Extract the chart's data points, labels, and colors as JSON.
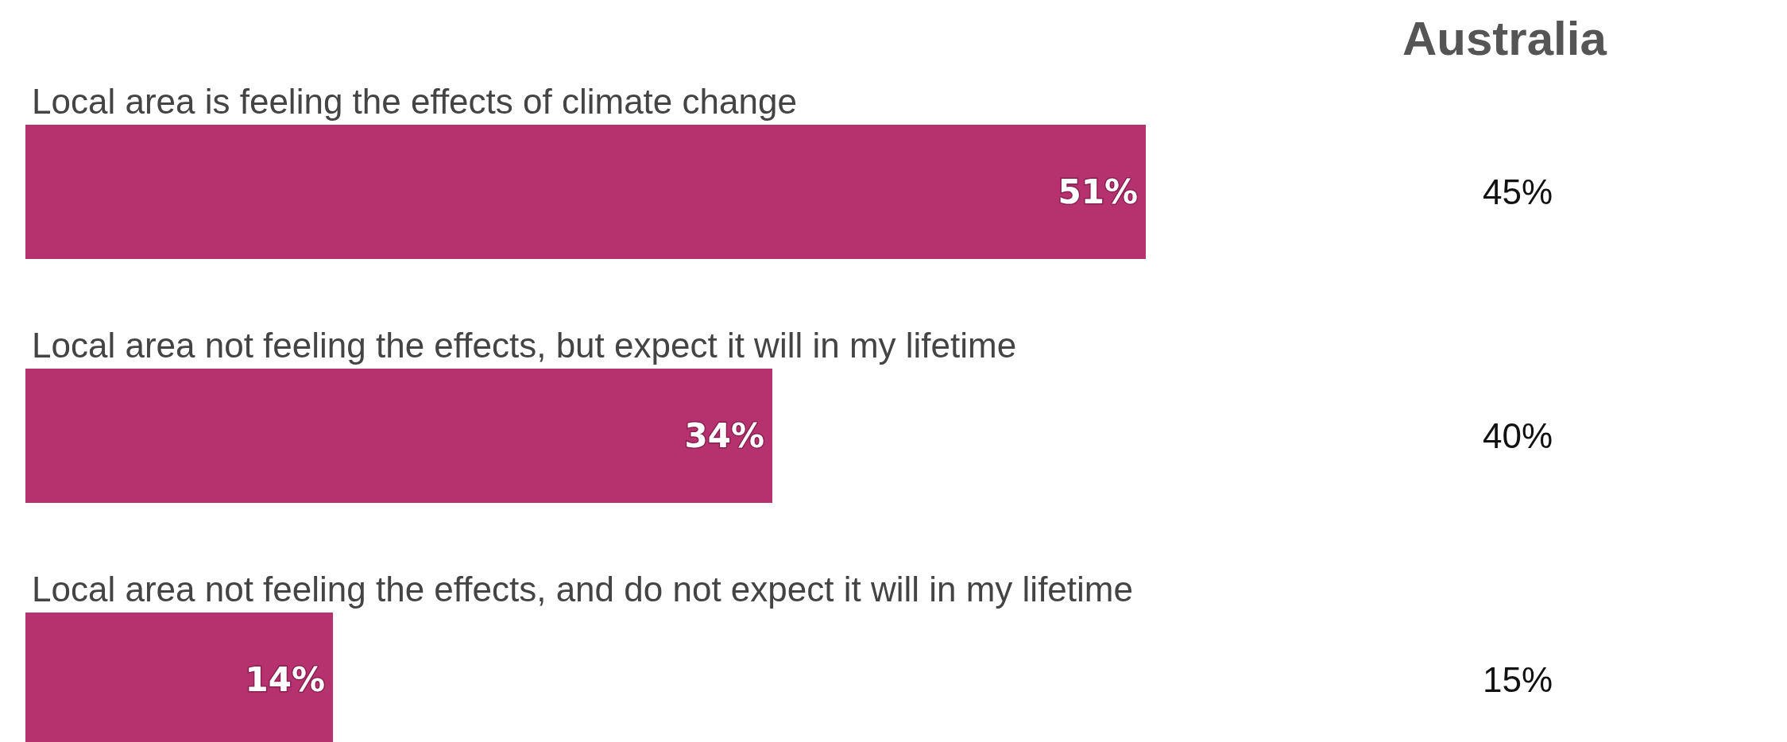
{
  "chart_data": {
    "type": "bar",
    "orientation": "horizontal",
    "categories": [
      "Local area is feeling the effects of climate change",
      "Local area not feeling the effects, but expect it will in my lifetime",
      "Local area not feeling the effects, and do not expect it will in my lifetime"
    ],
    "values": [
      51,
      34,
      14
    ],
    "color": "#b5326f",
    "data_labels": true,
    "value_labels": [
      "51%",
      "34%",
      "14%"
    ],
    "annotations": [
      "Australia",
      "45%",
      "40%",
      "15%"
    ]
  }
}
